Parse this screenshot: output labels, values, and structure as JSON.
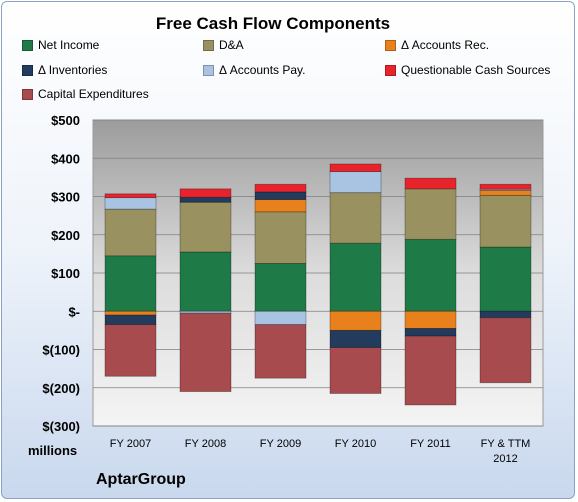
{
  "chart_data": {
    "type": "bar",
    "stacked": true,
    "title": "Free Cash Flow Components",
    "unit_label": "millions",
    "footer": "AptarGroup",
    "categories": [
      "FY 2007",
      "FY 2008",
      "FY 2009",
      "FY 2010",
      "FY 2011",
      "FY & TTM\n2012"
    ],
    "ylim": [
      -300,
      500
    ],
    "yticks": [
      500,
      400,
      300,
      200,
      100,
      0,
      -100,
      -200,
      -300
    ],
    "ytick_labels": [
      "$500",
      "$400",
      "$300",
      "$200",
      "$100",
      "$-",
      "$(100)",
      "$(200)",
      "$(300)"
    ],
    "grid": true,
    "legend_position": "top",
    "series": [
      {
        "name": "Net Income",
        "color": "#1e7a47",
        "values": [
          145,
          155,
          125,
          178,
          188,
          168
        ]
      },
      {
        "name": "D&A",
        "color": "#9a9160",
        "values": [
          122,
          130,
          135,
          132,
          132,
          135
        ]
      },
      {
        "name": "Δ Accounts Rec.",
        "color": "#e8801c",
        "values": [
          -10,
          0,
          32,
          -50,
          -45,
          13
        ]
      },
      {
        "name": "Δ Inventories",
        "color": "#233b5c",
        "values": [
          -25,
          13,
          20,
          -45,
          -20,
          -17
        ]
      },
      {
        "name": "Δ Accounts Pay.",
        "color": "#a9c3e3",
        "values": [
          30,
          -5,
          -35,
          55,
          0,
          3
        ]
      },
      {
        "name": "Questionable Cash Sources",
        "color": "#e8232b",
        "values": [
          10,
          22,
          20,
          20,
          28,
          13
        ]
      },
      {
        "name": "Capital Expenditures",
        "color": "#a84b4e",
        "values": [
          -135,
          -205,
          -140,
          -120,
          -180,
          -170
        ]
      }
    ]
  }
}
